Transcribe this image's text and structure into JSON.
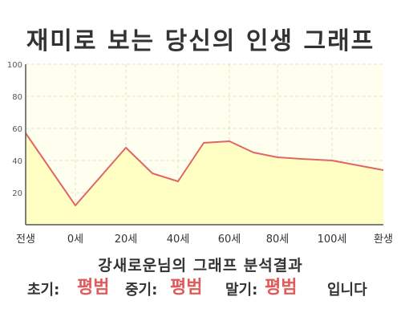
{
  "header": {
    "title": "재미로 보는 당신의 인생 그래프"
  },
  "colors": {
    "line": "#e06666",
    "fill": "#ffffc4",
    "plot_bg": "#fffff0",
    "grid": "#e0e0c8",
    "axis": "#555555",
    "highlight": "#e05a5a"
  },
  "chart_data": {
    "type": "area",
    "title": "재미로 보는 당신의 인생 그래프",
    "xlabel": "",
    "ylabel": "",
    "ylim": [
      0,
      100
    ],
    "yticks": [
      20,
      40,
      60,
      80,
      100
    ],
    "x_ticks": [
      "전생",
      "0세",
      "20세",
      "40세",
      "60세",
      "80세",
      "100세",
      "환생"
    ],
    "grid": true,
    "series": [
      {
        "points": [
          {
            "x": "전생",
            "y": 57
          },
          {
            "x": "0세",
            "y": 12
          },
          {
            "x": "20세",
            "y": 48
          },
          {
            "x": "30세",
            "y": 32
          },
          {
            "x": "40세",
            "y": 27
          },
          {
            "x": "50세",
            "y": 51
          },
          {
            "x": "60세",
            "y": 52
          },
          {
            "x": "70세",
            "y": 45
          },
          {
            "x": "80세",
            "y": 42
          },
          {
            "x": "90세",
            "y": 41
          },
          {
            "x": "100세",
            "y": 40
          },
          {
            "x": "환생",
            "y": 34
          }
        ]
      }
    ]
  },
  "summary": {
    "title": "강새로운님의 그래프 분석결과",
    "early_label": "초기:",
    "early_value": "평범",
    "middle_label": "중기:",
    "middle_value": "평범",
    "late_label": "말기:",
    "late_value": "평범",
    "ending": "입니다"
  }
}
